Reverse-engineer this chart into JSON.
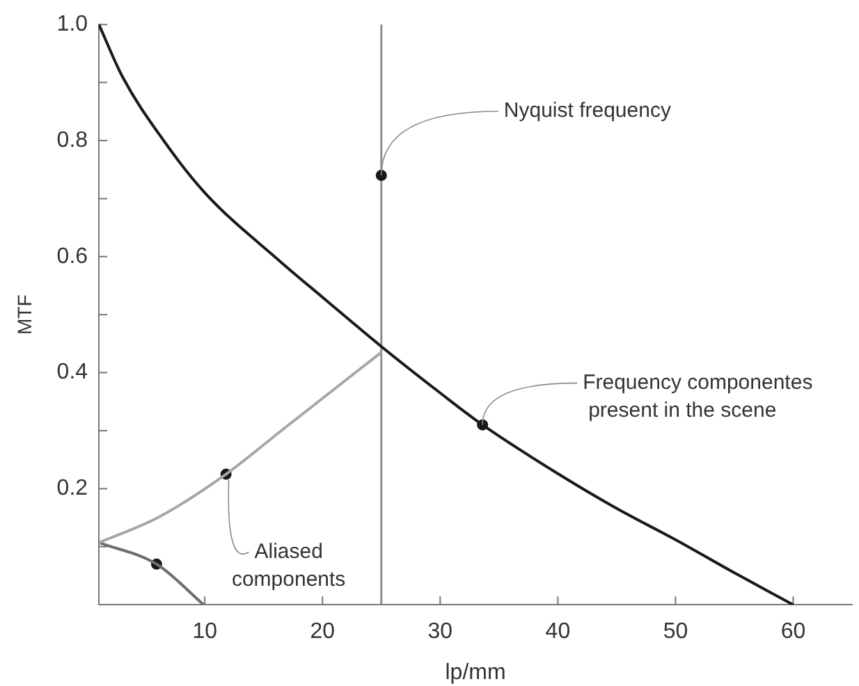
{
  "chart_data": {
    "type": "line",
    "xlabel": "lp/mm",
    "ylabel": "MTF",
    "xlim": [
      1,
      65
    ],
    "xticks": [
      10,
      20,
      30,
      40,
      50,
      60
    ],
    "ylim": [
      0,
      1
    ],
    "yticks": [
      {
        "value": 0.1,
        "label": null
      },
      0.2,
      {
        "value": 0.3,
        "label": null
      },
      0.4,
      {
        "value": 0.5,
        "label": null
      },
      0.6,
      {
        "value": 0.7,
        "label": null
      },
      0.8,
      {
        "value": 0.9,
        "label": null
      },
      {
        "value": 1,
        "label": "1.0"
      }
    ],
    "grid": false,
    "legend": false,
    "series": [
      {
        "color": "#1a1a1a",
        "x": [
          1,
          3,
          6.5,
          10,
          16.5,
          20,
          25,
          30,
          33.6,
          40,
          45,
          50,
          55,
          60
        ],
        "values": [
          1,
          0.91,
          0.8,
          0.71,
          0.59,
          0.53,
          0.445,
          0.365,
          0.31,
          0.226,
          0.166,
          0.112,
          0.055,
          0
        ]
      },
      {
        "color": "#a6a6a6",
        "x": [
          1,
          6,
          11.8,
          16.5,
          25
        ],
        "values": [
          0.107,
          0.15,
          0.225,
          0.3,
          0.435
        ]
      },
      {
        "color": "#6e6e6e",
        "x": [
          1,
          5.9,
          9.9
        ],
        "values": [
          0.107,
          0.07,
          0
        ]
      },
      {
        "type": "scatter",
        "color": "#1a1a1a",
        "x": [
          25,
          33.6,
          11.8,
          5.9
        ],
        "values": [
          0.74,
          0.31,
          0.225,
          0.07
        ]
      }
    ],
    "ref_lines": [
      {
        "axis": "x",
        "value": 25,
        "color": "#8c8c8c"
      }
    ],
    "annotations": [
      {
        "text": "Nyquist frequency",
        "x": 25,
        "y": 0.74
      },
      {
        "text": "Frequency componentes present in the scene",
        "x": 33.6,
        "y": 0.31
      },
      {
        "text": "Aliased components",
        "x": 11.8,
        "y": 0.225
      }
    ]
  }
}
